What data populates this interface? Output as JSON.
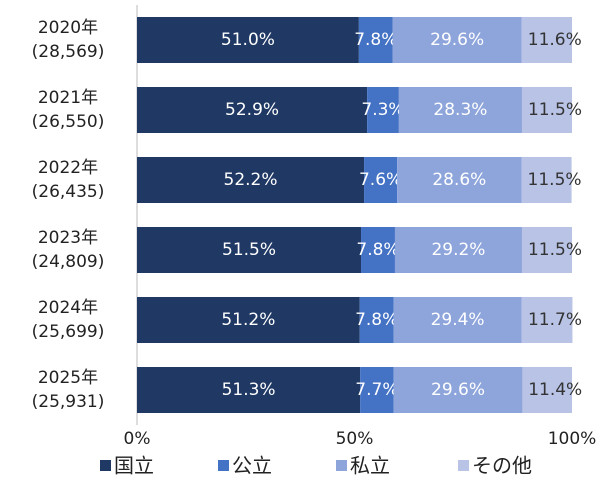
{
  "chart_data": {
    "type": "stacked-bar-horizontal",
    "categories": [
      [
        "2020年",
        "(28,569)"
      ],
      [
        "2021年",
        "(26,550)"
      ],
      [
        "2022年",
        "(26,435)"
      ],
      [
        "2023年",
        "(24,809)"
      ],
      [
        "2024年",
        "(25,699)"
      ],
      [
        "2025年",
        "(25,931)"
      ]
    ],
    "series": [
      {
        "name": "国立",
        "color": "#1f3864",
        "values": [
          51.0,
          52.9,
          52.2,
          51.5,
          51.2,
          51.3
        ],
        "value_labels": [
          "51.0%",
          "52.9%",
          "52.2%",
          "51.5%",
          "51.2%",
          "51.3%"
        ]
      },
      {
        "name": "公立",
        "color": "#4472c4",
        "values": [
          7.8,
          7.3,
          7.6,
          7.8,
          7.8,
          7.7
        ],
        "value_labels": [
          "7.8%",
          "7.3%",
          "7.6%",
          "7.8%",
          "7.8%",
          "7.7%"
        ]
      },
      {
        "name": "私立",
        "color": "#8ea5dc",
        "values": [
          29.6,
          28.3,
          28.6,
          29.2,
          29.4,
          29.6
        ],
        "value_labels": [
          "29.6%",
          "28.3%",
          "28.6%",
          "29.2%",
          "29.4%",
          "29.6%"
        ]
      },
      {
        "name": "その他",
        "color": "#b8c3e6",
        "values": [
          11.6,
          11.5,
          11.5,
          11.5,
          11.7,
          11.4
        ],
        "value_labels": [
          "11.6%",
          "11.5%",
          "11.5%",
          "11.5%",
          "11.7%",
          "11.4%"
        ]
      }
    ],
    "xlim": [
      0,
      100
    ],
    "xticks": [
      {
        "value": 0,
        "label": "0%"
      },
      {
        "value": 50,
        "label": "50%"
      },
      {
        "value": 100,
        "label": "100%"
      }
    ],
    "legend": "bottom"
  }
}
